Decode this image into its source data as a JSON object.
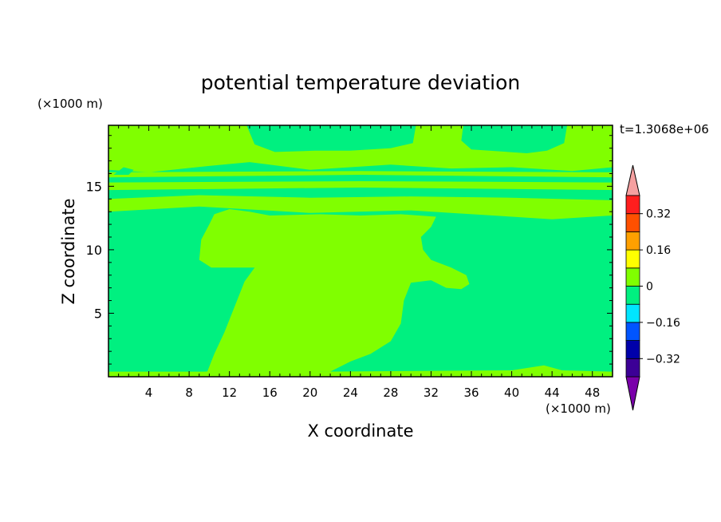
{
  "chart_data": {
    "type": "heatmap",
    "title": "potential temperature deviation",
    "xlabel": "X coordinate",
    "ylabel": "Z coordinate",
    "x_unit": "(×1000 m)",
    "y_unit": "(×1000 m)",
    "time_label": "t=1.3068e+06",
    "xlim": [
      0,
      50
    ],
    "ylim": [
      0,
      19.8
    ],
    "x_ticks": [
      4,
      8,
      12,
      16,
      20,
      24,
      28,
      32,
      36,
      40,
      44,
      48
    ],
    "y_ticks": [
      5,
      10,
      15
    ],
    "colorbar": {
      "levels": [
        -0.4,
        -0.32,
        -0.24,
        -0.16,
        -0.08,
        0,
        0.08,
        0.16,
        0.24,
        0.32,
        0.4
      ],
      "colors": [
        "#3c0096",
        "#0000aa",
        "#0055ff",
        "#00e5ff",
        "#00f080",
        "#80ff00",
        "#ffff00",
        "#ffa000",
        "#ff5000",
        "#ff1e1e"
      ],
      "under_color": "#7a00aa",
      "over_color": "#f5a0a0",
      "tick_labels": [
        "0.32",
        "0.16",
        "0",
        "-0.16",
        "-0.32"
      ]
    },
    "background_value_color": "#00f080",
    "regions": [
      {
        "name": "central-plume",
        "color": "#80ff00",
        "outline": [
          [
            9.8,
            0.4
          ],
          [
            10.5,
            1.8
          ],
          [
            11.5,
            3.5
          ],
          [
            12.5,
            5.5
          ],
          [
            13.5,
            7.5
          ],
          [
            14.5,
            8.6
          ],
          [
            10.2,
            8.6
          ],
          [
            9.0,
            9.2
          ],
          [
            9.2,
            10.8
          ],
          [
            10.0,
            12.0
          ],
          [
            10.5,
            12.8
          ],
          [
            12.0,
            13.2
          ],
          [
            14.0,
            13.0
          ],
          [
            16.0,
            12.7
          ],
          [
            21.0,
            12.8
          ],
          [
            25.0,
            12.7
          ],
          [
            29.0,
            12.8
          ],
          [
            32.5,
            12.6
          ],
          [
            32.0,
            11.8
          ],
          [
            31.0,
            11.0
          ],
          [
            31.2,
            10.0
          ],
          [
            32.0,
            9.2
          ],
          [
            34.0,
            8.6
          ],
          [
            35.5,
            8.0
          ],
          [
            35.8,
            7.3
          ],
          [
            35.0,
            6.9
          ],
          [
            33.5,
            7.0
          ],
          [
            32.0,
            7.6
          ],
          [
            30.0,
            7.4
          ],
          [
            29.3,
            6.0
          ],
          [
            29.0,
            4.2
          ],
          [
            28.0,
            2.8
          ],
          [
            26.0,
            1.8
          ],
          [
            24.0,
            1.2
          ],
          [
            22.0,
            0.4
          ]
        ]
      },
      {
        "name": "upper-band-1",
        "color": "#80ff00",
        "outline": [
          [
            0,
            13.0
          ],
          [
            9,
            13.4
          ],
          [
            20,
            12.9
          ],
          [
            30,
            13.1
          ],
          [
            40,
            12.6
          ],
          [
            44,
            12.4
          ],
          [
            50,
            12.7
          ],
          [
            50,
            13.9
          ],
          [
            40,
            14.1
          ],
          [
            30,
            14.2
          ],
          [
            20,
            14.1
          ],
          [
            9,
            14.3
          ],
          [
            0,
            14.0
          ]
        ]
      },
      {
        "name": "upper-band-2",
        "color": "#80ff00",
        "outline": [
          [
            0,
            14.7
          ],
          [
            25,
            14.9
          ],
          [
            50,
            14.7
          ],
          [
            50,
            15.3
          ],
          [
            25,
            15.4
          ],
          [
            0,
            15.3
          ]
        ]
      },
      {
        "name": "upper-band-3",
        "color": "#80ff00",
        "outline": [
          [
            0,
            15.7
          ],
          [
            25,
            15.9
          ],
          [
            50,
            15.7
          ],
          [
            50,
            16.1
          ],
          [
            25,
            16.2
          ],
          [
            0,
            16.1
          ]
        ]
      },
      {
        "name": "top-layer",
        "color": "#80ff00",
        "outline": [
          [
            0,
            16.3
          ],
          [
            4,
            16.1
          ],
          [
            10,
            16.6
          ],
          [
            14,
            16.9
          ],
          [
            20,
            16.3
          ],
          [
            28,
            16.7
          ],
          [
            34,
            16.4
          ],
          [
            40,
            16.5
          ],
          [
            46,
            16.2
          ],
          [
            50,
            16.5
          ],
          [
            50,
            19.8
          ],
          [
            45.5,
            19.8
          ],
          [
            45.2,
            18.4
          ],
          [
            43.5,
            17.8
          ],
          [
            41.5,
            17.6
          ],
          [
            36.0,
            17.9
          ],
          [
            35.0,
            18.6
          ],
          [
            35.2,
            19.8
          ],
          [
            30.5,
            19.8
          ],
          [
            30.2,
            18.4
          ],
          [
            28.0,
            18.0
          ],
          [
            24.0,
            17.8
          ],
          [
            20.5,
            17.8
          ],
          [
            16.5,
            17.7
          ],
          [
            14.5,
            18.3
          ],
          [
            13.7,
            19.8
          ],
          [
            0,
            19.8
          ]
        ]
      },
      {
        "name": "bottom-strip",
        "color": "#80ff00",
        "outline": [
          [
            0,
            0
          ],
          [
            50,
            0
          ],
          [
            50,
            0.4
          ],
          [
            45,
            0.5
          ],
          [
            43.2,
            0.9
          ],
          [
            40,
            0.5
          ],
          [
            21,
            0.4
          ],
          [
            15,
            0.7
          ],
          [
            9.5,
            0.4
          ],
          [
            0,
            0.4
          ]
        ]
      },
      {
        "name": "left-top-spot",
        "color": "#00f080",
        "outline": [
          [
            0.5,
            15.9
          ],
          [
            1.5,
            16.5
          ],
          [
            2.5,
            16.3
          ],
          [
            2.0,
            15.9
          ]
        ]
      }
    ]
  }
}
